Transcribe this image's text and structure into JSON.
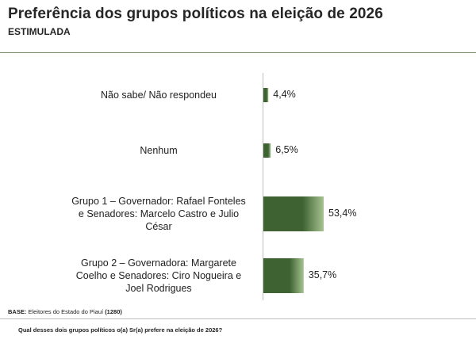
{
  "header": {
    "title": "Preferência dos grupos políticos na eleição de 2026",
    "subtitle": "ESTIMULADA"
  },
  "footer": {
    "base_label": "BASE:",
    "base_text": "Eleitores do Estado do Piauí",
    "base_count": "(1280)",
    "question": "Qual desses dois grupos políticos o(a) Sr(a) prefere na eleição de 2026?"
  },
  "colors": {
    "bar_dark": "#3e6232",
    "bar_light": "#a6c390",
    "text": "#222222"
  },
  "chart_data": {
    "type": "bar",
    "orientation": "horizontal",
    "title": "Preferência dos grupos políticos na eleição de 2026",
    "subtitle": "ESTIMULADA",
    "xlabel": "",
    "ylabel": "",
    "grid": false,
    "legend": "none",
    "xlim": [
      0,
      53.4
    ],
    "categories": [
      [
        "Não sabe/ Não respondeu"
      ],
      [
        "Nenhum"
      ],
      [
        "Grupo 1 – Governador: Rafael Fonteles",
        "e Senadores: Marcelo Castro e Julio",
        "César"
      ],
      [
        "Grupo 2 – Governadora: Margarete",
        "Coelho e Senadores: Ciro Nogueira e",
        "Joel Rodrigues"
      ]
    ],
    "values": [
      4.4,
      6.5,
      53.4,
      35.7
    ],
    "value_labels": [
      "4,4%",
      "6,5%",
      "53,4%",
      "35,7%"
    ]
  }
}
